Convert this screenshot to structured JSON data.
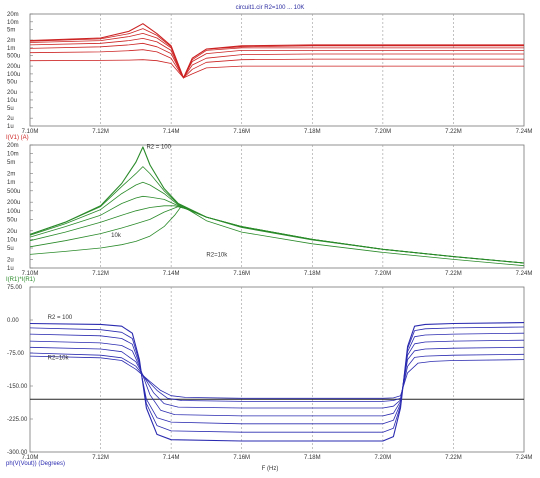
{
  "chart_data": [
    {
      "type": "line",
      "title": "circuit1.cir R2=100 ... 10K",
      "ylabel": "I(V1) (A)",
      "color": "#cc2222",
      "log_y": true,
      "ylim_exp": [
        -6,
        -1.7
      ],
      "xlim": [
        7.1,
        7.24
      ],
      "x_ticks": [
        "7.10M",
        "7.12M",
        "7.14M",
        "7.16M",
        "7.18M",
        "7.20M",
        "7.22M",
        "7.24M"
      ],
      "y_ticks": [
        {
          "label": "20m",
          "v": 0.02
        },
        {
          "label": "10m",
          "v": 0.01
        },
        {
          "label": "5m",
          "v": 0.005
        },
        {
          "label": "2m",
          "v": 0.002
        },
        {
          "label": "1m",
          "v": 0.001
        },
        {
          "label": "500u",
          "v": 0.0005
        },
        {
          "label": "200u",
          "v": 0.0002
        },
        {
          "label": "100u",
          "v": 0.0001
        },
        {
          "label": "50u",
          "v": 5e-05
        },
        {
          "label": "20u",
          "v": 2e-05
        },
        {
          "label": "10u",
          "v": 1e-05
        },
        {
          "label": "5u",
          "v": 5e-06
        },
        {
          "label": "2u",
          "v": 2e-06
        },
        {
          "label": "1u",
          "v": 1e-06
        }
      ],
      "series": [
        {
          "x": [
            7.1,
            7.12,
            7.128,
            7.132,
            7.136,
            7.14,
            7.1435,
            7.146,
            7.15,
            7.16,
            7.18,
            7.2,
            7.24
          ],
          "y": [
            0.0019,
            0.0024,
            0.0043,
            0.0085,
            0.0035,
            0.0012,
            7e-05,
            0.0004,
            0.0009,
            0.0012,
            0.0013,
            0.0013,
            0.0013
          ]
        },
        {
          "x": [
            7.1,
            7.12,
            7.128,
            7.132,
            7.136,
            7.14,
            7.1435,
            7.146,
            7.15,
            7.16,
            7.18,
            7.2,
            7.24
          ],
          "y": [
            0.0018,
            0.0022,
            0.0035,
            0.0055,
            0.003,
            0.0011,
            7e-05,
            0.0004,
            0.0009,
            0.0011,
            0.0012,
            0.0012,
            0.0012
          ]
        },
        {
          "x": [
            7.1,
            7.12,
            7.128,
            7.132,
            7.136,
            7.14,
            7.1435,
            7.146,
            7.15,
            7.16,
            7.18,
            7.2,
            7.24
          ],
          "y": [
            0.0016,
            0.0019,
            0.0027,
            0.0036,
            0.0024,
            0.001,
            7e-05,
            0.00035,
            0.0008,
            0.001,
            0.001,
            0.001,
            0.001
          ]
        },
        {
          "x": [
            7.1,
            7.12,
            7.128,
            7.132,
            7.136,
            7.14,
            7.1435,
            7.146,
            7.15,
            7.16,
            7.18,
            7.2,
            7.24
          ],
          "y": [
            0.0013,
            0.0015,
            0.0019,
            0.0023,
            0.0017,
            0.0008,
            7e-05,
            0.0003,
            0.0006,
            0.0008,
            0.0008,
            0.0008,
            0.0008
          ]
        },
        {
          "x": [
            7.1,
            7.12,
            7.128,
            7.132,
            7.136,
            7.14,
            7.1435,
            7.146,
            7.15,
            7.16,
            7.18,
            7.2,
            7.24
          ],
          "y": [
            0.00095,
            0.0011,
            0.0013,
            0.0015,
            0.0011,
            0.0006,
            7e-05,
            0.00022,
            0.0004,
            0.00055,
            0.00058,
            0.00058,
            0.00058
          ]
        },
        {
          "x": [
            7.1,
            7.12,
            7.128,
            7.132,
            7.136,
            7.14,
            7.1435,
            7.146,
            7.15,
            7.16,
            7.18,
            7.2,
            7.24
          ],
          "y": [
            0.00065,
            0.0007,
            0.00078,
            0.00085,
            0.0007,
            0.0004,
            7e-05,
            0.00015,
            0.00028,
            0.00035,
            0.00037,
            0.00037,
            0.00037
          ]
        },
        {
          "x": [
            7.1,
            7.12,
            7.128,
            7.132,
            7.136,
            7.14,
            7.1435,
            7.146,
            7.15,
            7.16,
            7.18,
            7.2,
            7.24
          ],
          "y": [
            0.00032,
            0.00033,
            0.00034,
            0.00035,
            0.00032,
            0.00025,
            7e-05,
            0.0001,
            0.00017,
            0.0002,
            0.0002,
            0.0002,
            0.0002
          ]
        }
      ]
    },
    {
      "type": "line",
      "ylabel": "I(R1)*I(R1)",
      "color": "#2a8a2a",
      "log_y": true,
      "ylim_exp": [
        -6,
        -1.7
      ],
      "xlim": [
        7.1,
        7.24
      ],
      "x_ticks": [
        "7.10M",
        "7.12M",
        "7.14M",
        "7.16M",
        "7.18M",
        "7.20M",
        "7.22M",
        "7.24M"
      ],
      "y_ticks": [
        {
          "label": "20m",
          "v": 0.02
        },
        {
          "label": "10m",
          "v": 0.01
        },
        {
          "label": "5m",
          "v": 0.005
        },
        {
          "label": "2m",
          "v": 0.002
        },
        {
          "label": "1m",
          "v": 0.001
        },
        {
          "label": "500u",
          "v": 0.0005
        },
        {
          "label": "200u",
          "v": 0.0002
        },
        {
          "label": "100u",
          "v": 0.0001
        },
        {
          "label": "50u",
          "v": 5e-05
        },
        {
          "label": "20u",
          "v": 2e-05
        },
        {
          "label": "10u",
          "v": 1e-05
        },
        {
          "label": "5u",
          "v": 5e-06
        },
        {
          "label": "2u",
          "v": 2e-06
        },
        {
          "label": "1u",
          "v": 1e-06
        }
      ],
      "annotations": [
        {
          "text": "R2 = 100",
          "x": 7.133,
          "y": 0.015
        },
        {
          "text": "10k",
          "x": 7.123,
          "y": 1.2e-05
        },
        {
          "text": "R2=10k",
          "x": 7.15,
          "y": 2.5e-06
        }
      ],
      "series": [
        {
          "x": [
            7.1,
            7.11,
            7.12,
            7.126,
            7.13,
            7.132,
            7.134,
            7.138,
            7.142,
            7.15,
            7.16,
            7.18,
            7.2,
            7.22,
            7.24
          ],
          "y": [
            1.5e-05,
            4e-05,
            0.00015,
            0.0009,
            0.005,
            0.017,
            0.004,
            0.0006,
            0.00018,
            6e-05,
            2.8e-05,
            1e-05,
            4.5e-06,
            2.5e-06,
            1.5e-06
          ]
        },
        {
          "x": [
            7.1,
            7.11,
            7.12,
            7.126,
            7.13,
            7.132,
            7.134,
            7.138,
            7.142,
            7.15,
            7.16,
            7.18,
            7.2,
            7.22,
            7.24
          ],
          "y": [
            1.5e-05,
            4e-05,
            0.00014,
            0.0007,
            0.002,
            0.0035,
            0.002,
            0.0005,
            0.00017,
            6e-05,
            2.8e-05,
            1e-05,
            4.5e-06,
            2.5e-06,
            1.5e-06
          ]
        },
        {
          "x": [
            7.1,
            7.11,
            7.12,
            7.126,
            7.13,
            7.132,
            7.134,
            7.138,
            7.142,
            7.15,
            7.16,
            7.18,
            7.2,
            7.22,
            7.24
          ],
          "y": [
            1.4e-05,
            3.5e-05,
            0.00011,
            0.0004,
            0.0008,
            0.001,
            0.0008,
            0.0004,
            0.00016,
            6e-05,
            2.8e-05,
            1e-05,
            4.5e-06,
            2.5e-06,
            1.5e-06
          ]
        },
        {
          "x": [
            7.1,
            7.11,
            7.12,
            7.126,
            7.13,
            7.132,
            7.134,
            7.138,
            7.142,
            7.15,
            7.16,
            7.18,
            7.2,
            7.22,
            7.24
          ],
          "y": [
            1.2e-05,
            2.8e-05,
            7e-05,
            0.00018,
            0.00028,
            0.00032,
            0.0003,
            0.00025,
            0.00015,
            6e-05,
            2.8e-05,
            1e-05,
            4.5e-06,
            2.5e-06,
            1.5e-06
          ]
        },
        {
          "x": [
            7.1,
            7.11,
            7.12,
            7.126,
            7.13,
            7.134,
            7.138,
            7.141,
            7.144,
            7.15,
            7.16,
            7.18,
            7.2,
            7.22,
            7.24
          ],
          "y": [
            9e-06,
            1.8e-05,
            4e-05,
            7e-05,
            0.0001,
            0.00013,
            0.00015,
            0.00015,
            0.00012,
            6e-05,
            2.7e-05,
            1e-05,
            4.5e-06,
            2.5e-06,
            1.5e-06
          ]
        },
        {
          "x": [
            7.1,
            7.11,
            7.12,
            7.126,
            7.13,
            7.134,
            7.138,
            7.142,
            7.145,
            7.15,
            7.16,
            7.18,
            7.2,
            7.22,
            7.24
          ],
          "y": [
            5.5e-06,
            9e-06,
            1.6e-05,
            2.5e-05,
            3.5e-05,
            5e-05,
            9e-05,
            0.00014,
            0.00011,
            6e-05,
            2.6e-05,
            9.5e-06,
            4.5e-06,
            2.5e-06,
            1.5e-06
          ]
        },
        {
          "x": [
            7.1,
            7.11,
            7.12,
            7.126,
            7.13,
            7.134,
            7.138,
            7.141,
            7.143,
            7.146,
            7.15,
            7.16,
            7.18,
            7.2,
            7.22,
            7.24
          ],
          "y": [
            3e-06,
            3.8e-06,
            5e-06,
            6.5e-06,
            8.5e-06,
            1.3e-05,
            2.8e-05,
            7e-05,
            0.00015,
            9e-05,
            4.5e-05,
            1.8e-05,
            7e-06,
            3.5e-06,
            2e-06,
            1.2e-06
          ]
        }
      ]
    },
    {
      "type": "line",
      "ylabel": "ph(V(Vout)) (Degrees)",
      "xlabel": "F (Hz)",
      "color": "#2a2ab0",
      "log_y": false,
      "ylim": [
        -300,
        75
      ],
      "xlim": [
        7.1,
        7.24
      ],
      "x_ticks": [
        "7.10M",
        "7.12M",
        "7.14M",
        "7.16M",
        "7.18M",
        "7.20M",
        "7.22M",
        "7.24M"
      ],
      "y_ticks": [
        {
          "label": "75.00",
          "v": 75
        },
        {
          "label": "0.00",
          "v": 0
        },
        {
          "label": "-75.00",
          "v": -75
        },
        {
          "label": "-150.00",
          "v": -150
        },
        {
          "label": "-225.00",
          "v": -225
        },
        {
          "label": "-300.00",
          "v": -300
        }
      ],
      "annotations": [
        {
          "text": "R2 = 100",
          "x": 7.105,
          "y": 2
        },
        {
          "text": "R2=10k",
          "x": 7.105,
          "y": -90
        }
      ],
      "baseline_y": -180,
      "series": [
        {
          "x": [
            7.1,
            7.12,
            7.126,
            7.129,
            7.131,
            7.133,
            7.136,
            7.14,
            7.16,
            7.2,
            7.203,
            7.205,
            7.207,
            7.209,
            7.212,
            7.22,
            7.24
          ],
          "y": [
            -8,
            -10,
            -14,
            -30,
            -90,
            -200,
            -260,
            -272,
            -275,
            -275,
            -265,
            -200,
            -60,
            -14,
            -10,
            -8,
            -6
          ]
        },
        {
          "x": [
            7.1,
            7.12,
            7.126,
            7.129,
            7.131,
            7.133,
            7.136,
            7.14,
            7.16,
            7.2,
            7.203,
            7.205,
            7.207,
            7.209,
            7.212,
            7.22,
            7.24
          ],
          "y": [
            -18,
            -22,
            -28,
            -42,
            -95,
            -190,
            -240,
            -252,
            -255,
            -255,
            -246,
            -195,
            -65,
            -24,
            -20,
            -18,
            -16
          ]
        },
        {
          "x": [
            7.1,
            7.12,
            7.126,
            7.129,
            7.131,
            7.133,
            7.136,
            7.14,
            7.16,
            7.2,
            7.203,
            7.205,
            7.207,
            7.209,
            7.212,
            7.22,
            7.24
          ],
          "y": [
            -32,
            -36,
            -42,
            -55,
            -100,
            -180,
            -222,
            -232,
            -236,
            -236,
            -228,
            -190,
            -72,
            -38,
            -34,
            -32,
            -30
          ]
        },
        {
          "x": [
            7.1,
            7.12,
            7.126,
            7.129,
            7.131,
            7.134,
            7.137,
            7.141,
            7.16,
            7.2,
            7.203,
            7.205,
            7.207,
            7.209,
            7.212,
            7.22,
            7.24
          ],
          "y": [
            -48,
            -52,
            -58,
            -70,
            -105,
            -170,
            -205,
            -215,
            -218,
            -218,
            -212,
            -185,
            -80,
            -54,
            -50,
            -48,
            -46
          ]
        },
        {
          "x": [
            7.1,
            7.12,
            7.126,
            7.13,
            7.132,
            7.135,
            7.138,
            7.142,
            7.16,
            7.2,
            7.203,
            7.205,
            7.207,
            7.209,
            7.212,
            7.22,
            7.24
          ],
          "y": [
            -62,
            -66,
            -72,
            -95,
            -125,
            -165,
            -190,
            -198,
            -200,
            -200,
            -196,
            -182,
            -90,
            -70,
            -66,
            -64,
            -62
          ]
        },
        {
          "x": [
            7.1,
            7.12,
            7.126,
            7.13,
            7.133,
            7.136,
            7.139,
            7.143,
            7.16,
            7.2,
            7.203,
            7.205,
            7.207,
            7.209,
            7.212,
            7.22,
            7.24
          ],
          "y": [
            -75,
            -80,
            -86,
            -105,
            -135,
            -160,
            -178,
            -183,
            -185,
            -185,
            -183,
            -178,
            -105,
            -85,
            -82,
            -80,
            -78
          ]
        },
        {
          "x": [
            7.1,
            7.12,
            7.126,
            7.13,
            7.134,
            7.137,
            7.14,
            7.144,
            7.16,
            7.2,
            7.203,
            7.205,
            7.207,
            7.21,
            7.214,
            7.22,
            7.24
          ],
          "y": [
            -82,
            -86,
            -92,
            -112,
            -140,
            -160,
            -172,
            -176,
            -178,
            -178,
            -177,
            -172,
            -120,
            -98,
            -94,
            -92,
            -90
          ]
        }
      ]
    }
  ]
}
